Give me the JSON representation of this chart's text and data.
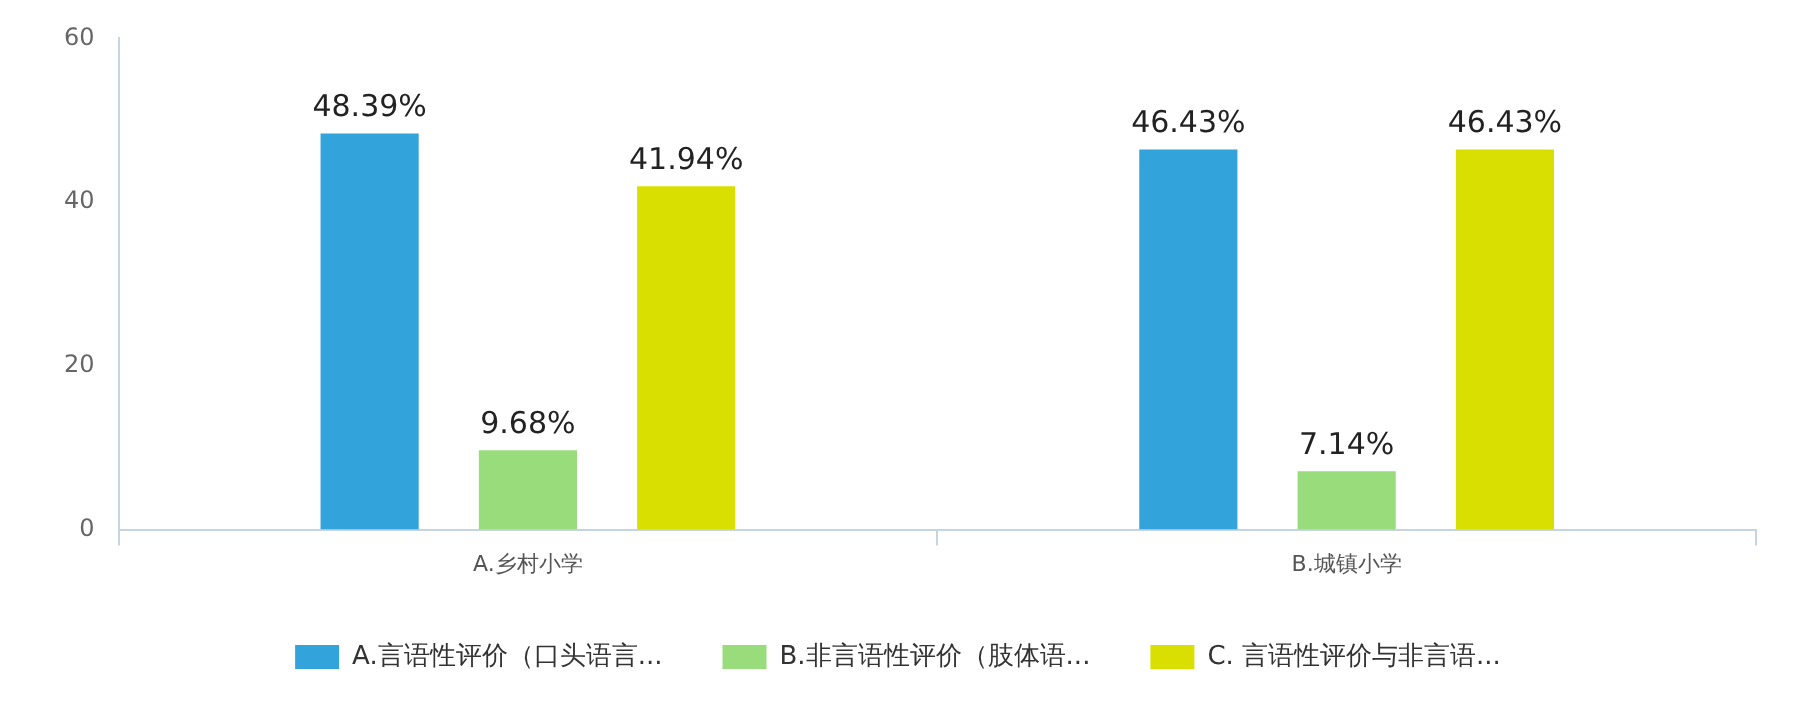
{
  "chart_data": {
    "type": "bar",
    "categories": [
      "A.乡村小学",
      "B.城镇小学"
    ],
    "series": [
      {
        "name": "A.言语性评价（口头语言...",
        "color": "#33a3dc",
        "values": [
          48.39,
          46.43
        ],
        "value_labels": [
          "48.39%",
          "46.43%"
        ]
      },
      {
        "name": "B.非言语性评价（肢体语...",
        "color": "#98dc7c",
        "values": [
          9.68,
          7.14
        ],
        "value_labels": [
          "9.68%",
          "7.14%"
        ]
      },
      {
        "name": "C. 言语性评价与非言语...",
        "color": "#d9df00",
        "values": [
          41.94,
          46.43
        ],
        "value_labels": [
          "41.94%",
          "46.43%"
        ]
      }
    ],
    "ylim": [
      0,
      60
    ],
    "yticks": [
      0,
      20,
      40,
      60
    ],
    "grid": false,
    "legend": "bottom"
  }
}
